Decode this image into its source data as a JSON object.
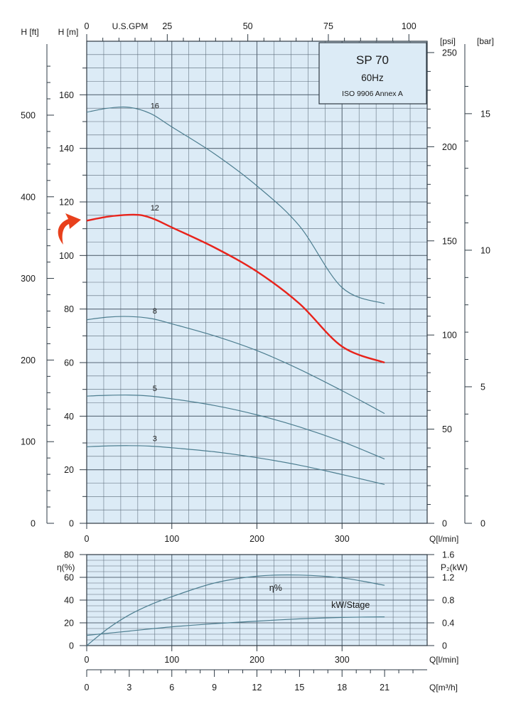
{
  "info_box": {
    "title": "SP 70",
    "subtitle": "60Hz",
    "standard": "ISO 9906 Annex A"
  },
  "colors": {
    "plot_bg": "#dcebf6",
    "grid": "#5a6a78",
    "curve": "#4d7e90",
    "highlight": "#e8231b",
    "arrow": "#e8401c"
  },
  "chart_data": [
    {
      "type": "line",
      "title": "",
      "x_bottom": {
        "label": "Q[l/min]",
        "ticks": [
          0,
          100,
          200,
          300
        ],
        "range": [
          0,
          400
        ]
      },
      "x_top": {
        "label": "U.S.GPM",
        "ticks": [
          0,
          25,
          50,
          75,
          100
        ]
      },
      "y_left": {
        "label": "H [m]",
        "ticks": [
          0,
          20,
          40,
          60,
          80,
          100,
          120,
          140,
          160
        ],
        "range": [
          0,
          180
        ]
      },
      "y_left_outer": {
        "label": "H [ft]",
        "ticks": [
          0,
          100,
          200,
          300,
          400,
          500
        ]
      },
      "y_right": {
        "label": "[psi]",
        "ticks": [
          0,
          50,
          100,
          150,
          200,
          250
        ]
      },
      "y_right_outer": {
        "label": "[bar]",
        "ticks": [
          0,
          5,
          10,
          15
        ]
      },
      "grid": true,
      "highlighted_series": "12",
      "series": [
        {
          "name": "16",
          "x": [
            0,
            25,
            50,
            75,
            100,
            150,
            200,
            250,
            300,
            350
          ],
          "y": [
            153.5,
            155,
            155.3,
            153,
            148,
            138,
            126,
            111,
            88,
            82
          ]
        },
        {
          "name": "12",
          "x": [
            0,
            25,
            50,
            65,
            80,
            100,
            150,
            200,
            250,
            300,
            350
          ],
          "y": [
            113,
            114.5,
            115.2,
            115,
            113.5,
            110.5,
            103,
            94,
            82,
            66,
            60
          ]
        },
        {
          "name": "8",
          "x": [
            0,
            25,
            50,
            75,
            100,
            150,
            200,
            250,
            300,
            350
          ],
          "y": [
            76,
            77,
            77.2,
            76.5,
            74.5,
            70,
            64.5,
            57.5,
            49.5,
            41
          ]
        },
        {
          "name": "5",
          "x": [
            0,
            25,
            50,
            75,
            100,
            150,
            200,
            250,
            300,
            350
          ],
          "y": [
            47.5,
            47.8,
            47.9,
            47.5,
            46.5,
            44,
            40.5,
            36,
            30.5,
            24
          ]
        },
        {
          "name": "3",
          "x": [
            0,
            25,
            50,
            75,
            100,
            150,
            200,
            250,
            300,
            350
          ],
          "y": [
            28.6,
            28.9,
            29,
            28.8,
            28.2,
            26.7,
            24.5,
            21.7,
            18.2,
            14.5
          ]
        }
      ]
    },
    {
      "type": "line",
      "title": "",
      "x_bottom": {
        "label": "Q[l/min]",
        "ticks": [
          0,
          100,
          200,
          300
        ],
        "range": [
          0,
          400
        ]
      },
      "x_flow": {
        "label": "Q[m³/h]",
        "ticks": [
          0,
          3,
          6,
          9,
          12,
          15,
          18,
          21
        ],
        "range": [
          0,
          24
        ]
      },
      "y_left": {
        "label": "η(%)",
        "ticks": [
          0,
          20,
          40,
          60,
          80
        ],
        "range": [
          0,
          80
        ]
      },
      "y_right": {
        "label": "P₂(kW)",
        "ticks": [
          0,
          0.4,
          0.8,
          1.2,
          1.6
        ],
        "range": [
          0,
          1.6
        ]
      },
      "grid": true,
      "series": [
        {
          "name": "η%",
          "axis": "left",
          "x": [
            0,
            25,
            50,
            75,
            100,
            150,
            200,
            250,
            300,
            350
          ],
          "y": [
            0,
            15,
            27,
            36,
            43,
            55,
            61,
            62,
            59.5,
            53
          ]
        },
        {
          "name": "kW/Stage",
          "axis": "right",
          "x": [
            0,
            50,
            100,
            150,
            200,
            250,
            300,
            350
          ],
          "y": [
            0.18,
            0.255,
            0.33,
            0.385,
            0.43,
            0.47,
            0.495,
            0.505
          ]
        }
      ]
    }
  ]
}
